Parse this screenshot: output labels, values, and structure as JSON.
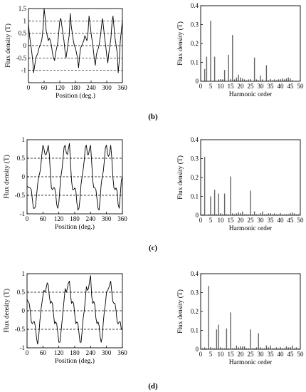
{
  "chart_data": [
    {
      "type": "line",
      "panel": "b",
      "xlabel": "Position (deg.)",
      "ylabel": "Flux density (T)",
      "xlim": [
        0,
        360
      ],
      "ylim": [
        -1.5,
        1.5
      ],
      "xticks": [
        0,
        60,
        120,
        180,
        240,
        300,
        360
      ],
      "yticks": [
        -1.5,
        -1,
        -0.5,
        0,
        0.5,
        1,
        1.5
      ],
      "ytick_labels": [
        "",
        "-1",
        "-0.5",
        "0",
        "0.5",
        "1",
        "1.5"
      ],
      "grid": "dashed horizontal",
      "x": [
        0,
        4,
        8,
        12,
        16,
        20,
        24,
        28,
        32,
        36,
        40,
        44,
        48,
        52,
        56,
        60,
        64,
        68,
        72,
        76,
        80,
        84,
        88,
        92,
        96,
        100,
        104,
        108,
        112,
        116,
        120,
        124,
        128,
        132,
        136,
        140,
        144,
        148,
        152,
        156,
        160,
        164,
        168,
        172,
        176,
        180,
        184,
        188,
        192,
        196,
        200,
        204,
        208,
        212,
        216,
        220,
        224,
        228,
        232,
        236,
        240,
        244,
        248,
        252,
        256,
        260,
        264,
        268,
        272,
        276,
        280,
        284,
        288,
        292,
        296,
        300,
        304,
        308,
        312,
        316,
        320,
        324,
        328,
        332,
        336,
        340,
        344,
        348,
        352,
        356,
        360
      ],
      "y": [
        0.9,
        0.4,
        0.1,
        -0.2,
        -0.6,
        -1.1,
        -0.8,
        -0.5,
        -0.4,
        -0.3,
        -0.1,
        0.0,
        0.1,
        0.3,
        0.7,
        1.5,
        1.1,
        0.6,
        0.4,
        0.2,
        0.3,
        0.2,
        0.0,
        -0.3,
        -0.5,
        -0.6,
        -0.3,
        -0.1,
        0.1,
        0.5,
        1.0,
        1.1,
        0.8,
        0.5,
        0.2,
        -0.2,
        -0.5,
        -0.2,
        0.1,
        0.4,
        1.3,
        0.8,
        0.5,
        0.2,
        0.0,
        -0.1,
        -0.3,
        -0.5,
        -0.9,
        -0.4,
        -0.1,
        0.0,
        0.1,
        0.2,
        0.4,
        0.3,
        0.2,
        0.5,
        1.2,
        0.9,
        0.5,
        0.2,
        -0.1,
        -0.5,
        -0.8,
        -0.4,
        -0.2,
        -0.1,
        0.1,
        0.4,
        0.8,
        1.1,
        0.7,
        0.3,
        0.0,
        -0.4,
        -0.7,
        -0.3,
        0.0,
        0.3,
        0.9,
        1.2,
        0.7,
        0.3,
        0.0,
        -0.3,
        -1.1,
        -0.6,
        0.2,
        0.6,
        1.0
      ]
    },
    {
      "type": "bar",
      "panel": "b",
      "xlabel": "Harmonic order",
      "ylabel": "Flux density (T)",
      "xlim": [
        0,
        50
      ],
      "ylim": [
        0,
        0.4
      ],
      "xticks": [
        0,
        5,
        10,
        15,
        20,
        25,
        30,
        35,
        40,
        45,
        50
      ],
      "yticks": [
        0,
        0.1,
        0.2,
        0.3,
        0.4
      ],
      "ytick_labels": [
        "0",
        "0.1",
        "0.2",
        "0.3",
        "0.4"
      ],
      "categories": [
        1,
        2,
        3,
        4,
        5,
        6,
        7,
        8,
        9,
        10,
        11,
        12,
        13,
        14,
        15,
        16,
        17,
        18,
        19,
        20,
        21,
        22,
        23,
        24,
        25,
        26,
        27,
        28,
        29,
        30,
        31,
        32,
        33,
        34,
        35,
        36,
        37,
        38,
        39,
        40,
        41,
        42,
        43,
        44,
        45,
        46,
        47,
        48,
        49,
        50
      ],
      "values": [
        0.0,
        0.065,
        0.13,
        0.0,
        0.32,
        0.0,
        0.13,
        0.0,
        0.01,
        0.0,
        0.01,
        0.06,
        0.0,
        0.14,
        0.0,
        0.245,
        0.01,
        0.02,
        0.035,
        0.02,
        0.015,
        0.01,
        0.005,
        0.01,
        0.005,
        0.0,
        0.125,
        0.01,
        0.005,
        0.03,
        0.01,
        0.0,
        0.085,
        0.005,
        0.01,
        0.005,
        0.01,
        0.005,
        0.01,
        0.005,
        0.015,
        0.01,
        0.015,
        0.02,
        0.015,
        0.005,
        0.0,
        0.0,
        0.0,
        0.0
      ]
    },
    {
      "type": "line",
      "panel": "c",
      "xlabel": "Position (deg.)",
      "ylabel": "Flux density (T)",
      "xlim": [
        0,
        360
      ],
      "ylim": [
        -1,
        1
      ],
      "xticks": [
        0,
        60,
        120,
        180,
        240,
        300,
        360
      ],
      "yticks": [
        -1,
        -0.5,
        0,
        0.5,
        1
      ],
      "ytick_labels": [
        "-1",
        "-0.5",
        "0",
        "0.5",
        "1"
      ],
      "grid": "dashed horizontal",
      "x": [
        0,
        4,
        8,
        12,
        16,
        20,
        24,
        28,
        32,
        36,
        40,
        44,
        48,
        52,
        56,
        60,
        64,
        68,
        72,
        76,
        80,
        84,
        88,
        92,
        96,
        100,
        104,
        108,
        112,
        116,
        120,
        124,
        128,
        132,
        136,
        140,
        144,
        148,
        152,
        156,
        160,
        164,
        168,
        172,
        176,
        180,
        184,
        188,
        192,
        196,
        200,
        204,
        208,
        212,
        216,
        220,
        224,
        228,
        232,
        236,
        240,
        244,
        248,
        252,
        256,
        260,
        264,
        268,
        272,
        276,
        280,
        284,
        288,
        292,
        296,
        300,
        304,
        308,
        312,
        316,
        320,
        324,
        328,
        332,
        336,
        340,
        344,
        348,
        352,
        356,
        360
      ],
      "y": [
        -0.25,
        -0.28,
        -0.3,
        -0.3,
        -0.35,
        -0.6,
        -0.85,
        -0.85,
        -0.8,
        -0.5,
        -0.2,
        0.0,
        0.1,
        0.3,
        0.6,
        0.85,
        0.75,
        0.6,
        0.6,
        0.7,
        0.85,
        0.6,
        0.1,
        -0.3,
        -0.35,
        -0.3,
        -0.3,
        -0.45,
        -0.75,
        -0.85,
        -0.7,
        -0.3,
        0.0,
        0.2,
        0.5,
        0.8,
        0.85,
        0.65,
        0.6,
        0.75,
        0.9,
        0.4,
        -0.1,
        -0.35,
        -0.35,
        -0.3,
        -0.35,
        -0.7,
        -0.9,
        -0.85,
        -0.6,
        -0.2,
        0.0,
        0.2,
        0.45,
        0.8,
        0.85,
        0.6,
        0.6,
        0.75,
        0.85,
        0.4,
        -0.1,
        -0.3,
        -0.3,
        -0.35,
        -0.6,
        -0.85,
        -0.9,
        -0.6,
        -0.2,
        0.0,
        0.15,
        0.45,
        0.8,
        0.85,
        0.6,
        0.55,
        0.65,
        0.85,
        0.5,
        0.0,
        -0.3,
        -0.35,
        -0.3,
        -0.4,
        -0.75,
        -0.85,
        -0.5,
        -0.1,
        0.0
      ]
    },
    {
      "type": "bar",
      "panel": "c",
      "xlabel": "Harmonic order",
      "ylabel": "Flux density (T)",
      "xlim": [
        0,
        50
      ],
      "ylim": [
        0,
        0.4
      ],
      "xticks": [
        0,
        5,
        10,
        15,
        20,
        25,
        30,
        35,
        40,
        45,
        50
      ],
      "yticks": [
        0,
        0.1,
        0.2,
        0.3,
        0.4
      ],
      "ytick_labels": [
        "0",
        "0.1",
        "0.2",
        "0.3",
        "0.4"
      ],
      "categories": [
        1,
        2,
        3,
        4,
        5,
        6,
        7,
        8,
        9,
        10,
        11,
        12,
        13,
        14,
        15,
        16,
        17,
        18,
        19,
        20,
        21,
        22,
        23,
        24,
        25,
        26,
        27,
        28,
        29,
        30,
        31,
        32,
        33,
        34,
        35,
        36,
        37,
        38,
        39,
        40,
        41,
        42,
        43,
        44,
        45,
        46,
        47,
        48,
        49,
        50
      ],
      "values": [
        0.005,
        0.31,
        0.0,
        0.005,
        0.1,
        0.005,
        0.135,
        0.005,
        0.115,
        0.005,
        0.005,
        0.115,
        0.005,
        0.005,
        0.205,
        0.01,
        0.005,
        0.01,
        0.015,
        0.005,
        0.02,
        0.005,
        0.005,
        0.005,
        0.13,
        0.005,
        0.02,
        0.005,
        0.005,
        0.005,
        0.02,
        0.005,
        0.005,
        0.01,
        0.005,
        0.005,
        0.01,
        0.005,
        0.005,
        0.005,
        0.005,
        0.005,
        0.005,
        0.005,
        0.005,
        0.015,
        0.01,
        0.005,
        0.005,
        0.0
      ]
    },
    {
      "type": "line",
      "panel": "d",
      "xlabel": "Position (deg.)",
      "ylabel": "Flux density (T)",
      "xlim": [
        0,
        360
      ],
      "ylim": [
        -1,
        1
      ],
      "xticks": [
        0,
        60,
        120,
        180,
        240,
        300,
        360
      ],
      "yticks": [
        -1,
        -0.5,
        0,
        0.5,
        1
      ],
      "ytick_labels": [
        "-1",
        "-0.5",
        "0",
        "0.5",
        "1"
      ],
      "grid": "dashed horizontal",
      "x": [
        0,
        4,
        8,
        12,
        16,
        20,
        24,
        28,
        32,
        36,
        40,
        44,
        48,
        52,
        56,
        60,
        64,
        68,
        72,
        76,
        80,
        84,
        88,
        92,
        96,
        100,
        104,
        108,
        112,
        116,
        120,
        124,
        128,
        132,
        136,
        140,
        144,
        148,
        152,
        156,
        160,
        164,
        168,
        172,
        176,
        180,
        184,
        188,
        192,
        196,
        200,
        204,
        208,
        212,
        216,
        220,
        224,
        228,
        232,
        236,
        240,
        244,
        248,
        252,
        256,
        260,
        264,
        268,
        272,
        276,
        280,
        284,
        288,
        292,
        296,
        300,
        304,
        308,
        312,
        316,
        320,
        324,
        328,
        332,
        336,
        340,
        344,
        348,
        352,
        356,
        360
      ],
      "y": [
        0.3,
        0.25,
        0.2,
        0.0,
        -0.3,
        -0.35,
        -0.3,
        -0.3,
        -0.45,
        -0.75,
        -0.9,
        -0.7,
        -0.3,
        0.0,
        0.2,
        0.4,
        0.55,
        0.5,
        0.6,
        0.75,
        0.7,
        0.4,
        0.2,
        0.25,
        0.2,
        -0.1,
        -0.35,
        -0.3,
        -0.35,
        -0.6,
        -0.85,
        -0.85,
        -0.6,
        -0.3,
        0.0,
        0.3,
        0.6,
        0.5,
        0.6,
        0.75,
        0.8,
        0.45,
        0.2,
        0.25,
        0.2,
        -0.1,
        -0.35,
        -0.3,
        -0.35,
        -0.6,
        -0.85,
        -0.85,
        -0.55,
        -0.2,
        0.0,
        0.3,
        0.65,
        0.55,
        0.6,
        0.8,
        0.95,
        0.4,
        0.2,
        0.25,
        0.15,
        -0.2,
        -0.35,
        -0.3,
        -0.4,
        -0.7,
        -0.85,
        -0.7,
        -0.3,
        0.0,
        0.2,
        0.5,
        0.55,
        0.6,
        0.7,
        0.8,
        0.5,
        0.25,
        0.2,
        0.2,
        0.0,
        -0.3,
        -0.35,
        -0.3,
        -0.3,
        -0.5,
        -0.5
      ]
    },
    {
      "type": "bar",
      "panel": "d",
      "xlabel": "Harmonic order",
      "ylabel": "Flux density (T)",
      "xlim": [
        0,
        50
      ],
      "ylim": [
        0,
        0.4
      ],
      "xticks": [
        0,
        5,
        10,
        15,
        20,
        25,
        30,
        35,
        40,
        45,
        50
      ],
      "yticks": [
        0,
        0.1,
        0.2,
        0.3,
        0.4
      ],
      "ytick_labels": [
        "0",
        "0.1",
        "0.2",
        "0.3",
        "0.4"
      ],
      "categories": [
        1,
        2,
        3,
        4,
        5,
        6,
        7,
        8,
        9,
        10,
        11,
        12,
        13,
        14,
        15,
        16,
        17,
        18,
        19,
        20,
        21,
        22,
        23,
        24,
        25,
        26,
        27,
        28,
        29,
        30,
        31,
        32,
        33,
        34,
        35,
        36,
        37,
        38,
        39,
        40,
        41,
        42,
        43,
        44,
        45,
        46,
        47,
        48,
        49,
        50
      ],
      "values": [
        0.005,
        0.01,
        0.005,
        0.335,
        0.005,
        0.005,
        0.005,
        0.105,
        0.13,
        0.005,
        0.005,
        0.005,
        0.11,
        0.005,
        0.195,
        0.005,
        0.005,
        0.02,
        0.01,
        0.015,
        0.015,
        0.015,
        0.005,
        0.005,
        0.105,
        0.005,
        0.005,
        0.01,
        0.085,
        0.005,
        0.005,
        0.005,
        0.02,
        0.01,
        0.02,
        0.005,
        0.005,
        0.01,
        0.005,
        0.01,
        0.005,
        0.005,
        0.015,
        0.01,
        0.01,
        0.02,
        0.005,
        0.01,
        0.005,
        0.0
      ]
    }
  ],
  "panel_labels": [
    "(b)",
    "(c)",
    "(d)"
  ]
}
